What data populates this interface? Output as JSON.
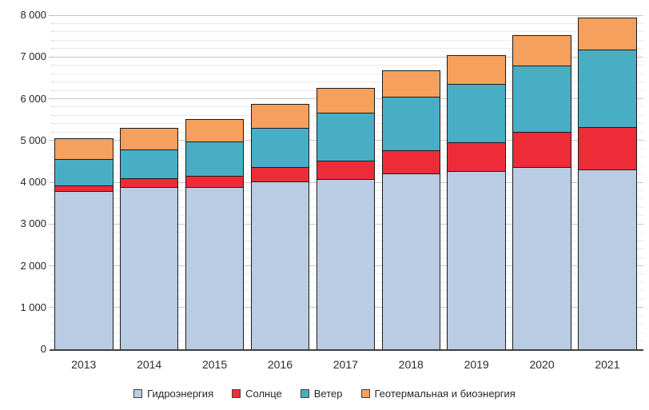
{
  "chart_data": {
    "type": "bar",
    "stacked": true,
    "title": "",
    "xlabel": "",
    "ylabel": "",
    "categories": [
      "2013",
      "2014",
      "2015",
      "2016",
      "2017",
      "2018",
      "2019",
      "2020",
      "2021"
    ],
    "series": [
      {
        "key": "hydro",
        "name": "Гидроэнергия",
        "color": "#b9cce3",
        "values": [
          3790,
          3890,
          3880,
          4015,
          4080,
          4210,
          4260,
          4355,
          4300
        ]
      },
      {
        "key": "solar",
        "name": "Солнце",
        "color": "#ee2c38",
        "values": [
          135,
          205,
          270,
          340,
          435,
          565,
          690,
          850,
          1015
        ]
      },
      {
        "key": "wind",
        "name": "Ветер",
        "color": "#48aec6",
        "values": [
          635,
          685,
          825,
          940,
          1145,
          1265,
          1400,
          1590,
          1865
        ]
      },
      {
        "key": "geo_bio",
        "name": "Геотермальная и биоэнергия",
        "color": "#f6a05e",
        "values": [
          485,
          515,
          545,
          575,
          595,
          640,
          690,
          725,
          765
        ]
      }
    ],
    "totals": [
      5045,
      5295,
      5520,
      5870,
      6255,
      6680,
      7040,
      7520,
      7945
    ],
    "ylim": [
      0,
      8000
    ],
    "y_major_step": 1000,
    "y_minor_step": 200,
    "y_tick_labels": [
      "0",
      "1 000",
      "2 000",
      "3 000",
      "4 000",
      "5 000",
      "6 000",
      "7 000",
      "8 000"
    ],
    "grid": "horizontal major+minor",
    "legend_position": "bottom-center"
  },
  "styles": {
    "segment_border_color": "#1b1b1b",
    "major_grid_color": "#c6c6c6",
    "minor_grid_color": "#ebebeb",
    "axis_line_color": "#404040",
    "text_color": "#262626",
    "background_color": "#ffffff"
  }
}
